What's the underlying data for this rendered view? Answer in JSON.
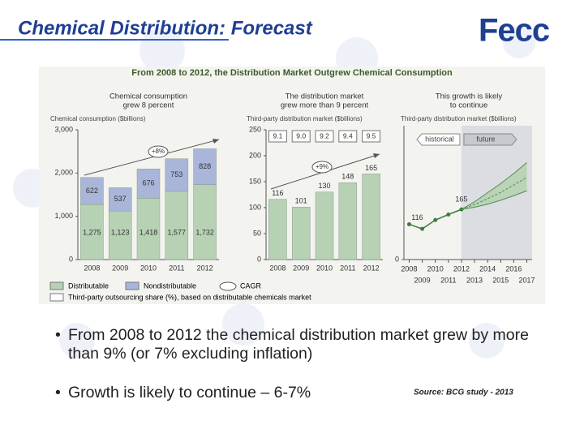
{
  "title": "Chemical Distribution: Forecast",
  "logo": "Fecc",
  "figure_title": "From 2008 to 2012, the Distribution Market Outgrew Chemical Consumption",
  "chart_data": [
    {
      "type": "stacked_bar",
      "headline": [
        "Chemical consumption",
        "grew 8 percent"
      ],
      "ylabel": "Chemical consumption ($billions)",
      "categories": [
        "2008",
        "2009",
        "2010",
        "2011",
        "2012"
      ],
      "series": [
        {
          "name": "Distributable",
          "color": "#b7d1b4",
          "values": [
            1275,
            1123,
            1418,
            1577,
            1732
          ],
          "value_labels": [
            "1,275",
            "1,123",
            "1,418",
            "1,577",
            "1,732"
          ]
        },
        {
          "name": "Nondistributable",
          "color": "#a9b6da",
          "values": [
            622,
            537,
            676,
            753,
            828
          ]
        }
      ],
      "ylim": [
        0,
        3000
      ],
      "yticks": [
        0,
        {
          "value": 1000,
          "label": "1,000"
        },
        {
          "value": 2000,
          "label": "2,000"
        },
        {
          "value": 3000,
          "label": "3,000"
        }
      ],
      "annotation": "+8%"
    },
    {
      "type": "bar",
      "headline": [
        "The distribution market",
        "grew more than 9 percent"
      ],
      "ylabel": "Third-party distribution market ($billions)",
      "categories": [
        "2008",
        "2009",
        "2010",
        "2011",
        "2012"
      ],
      "values": [
        116,
        101,
        130,
        148,
        165
      ],
      "color": "#b7d1b4",
      "ylim": [
        0,
        250
      ],
      "yticks": [
        0,
        50,
        100,
        150,
        200,
        250
      ],
      "share": {
        "values": [
          9.1,
          9.0,
          9.2,
          9.4,
          9.5
        ],
        "value_labels": [
          "9.1",
          "9.0",
          "9.2",
          "9.4",
          "9.5"
        ]
      },
      "annotation": "+9%"
    },
    {
      "type": "line",
      "headline": [
        "This growth is likely",
        "to continue"
      ],
      "ylabel": "Third-party distribution market ($billions)",
      "x": [
        2008,
        2009,
        2010,
        2011,
        2012,
        2013,
        2014,
        2015,
        2016,
        2017
      ],
      "xlim": [
        2007.6,
        2017.4
      ],
      "xticks": [
        2008,
        2009,
        2010,
        2011,
        2012,
        2013,
        2014,
        2015,
        2016,
        2017
      ],
      "ylim": [
        0,
        440
      ],
      "yticks": [
        0
      ],
      "series": [
        {
          "color": "#3c7d3c",
          "values": [
            116,
            101,
            130,
            148,
            165,
            null,
            null,
            null,
            null,
            null
          ]
        },
        {
          "color": "#4f8f4f",
          "values": [
            null,
            null,
            null,
            null,
            165,
            190,
            220,
            250,
            283,
            319
          ]
        },
        {
          "color": "#4f8f4f",
          "values": [
            null,
            null,
            null,
            null,
            165,
            172,
            182,
            195,
            210,
            226
          ]
        },
        {
          "color": "#4f8f4f",
          "values": [
            null,
            null,
            null,
            null,
            165,
            181,
            200,
            221,
            245,
            270
          ]
        }
      ],
      "annotations": [
        "historical",
        "future"
      ]
    }
  ],
  "legend": {
    "cagr": "CAGR",
    "share": "Third-party outsourcing share (%), based on distributable chemicals market"
  },
  "bullets": [
    "From 2008 to 2012 the chemical distribution market grew by more than 9% (or 7% excluding inflation)",
    "Growth is likely to continue – 6-7%"
  ],
  "source": "Source: BCG study - 2013"
}
